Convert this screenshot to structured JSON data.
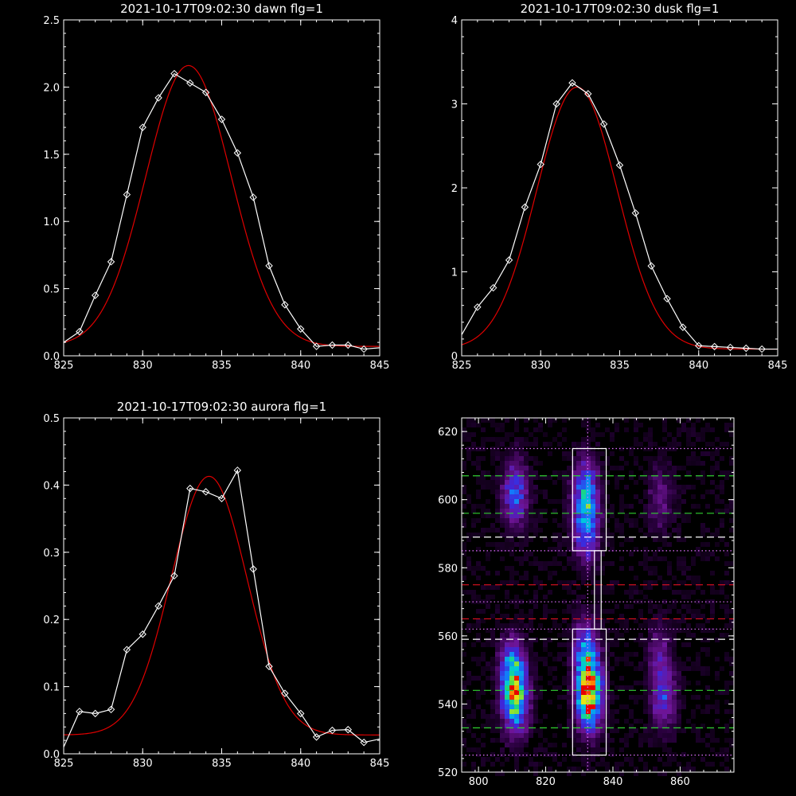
{
  "chart_data": [
    {
      "type": "line",
      "title": "2021-10-17T09:02:30 dawn flg=1",
      "xlim": [
        825,
        845
      ],
      "ylim": [
        0,
        2.5
      ],
      "xticks": [
        "825",
        "830",
        "835",
        "840",
        "845"
      ],
      "yticks": [
        "0.0",
        "0.5",
        "1.0",
        "1.5",
        "2.0",
        "2.5"
      ],
      "series": [
        {
          "x": [
            825,
            826,
            827,
            828,
            829,
            830,
            831,
            832,
            833,
            834,
            835,
            836,
            837,
            838,
            839,
            840,
            841,
            842,
            843,
            844,
            845
          ],
          "values": [
            0.1,
            0.18,
            0.45,
            0.7,
            1.2,
            1.7,
            1.92,
            2.1,
            2.03,
            1.96,
            1.76,
            1.51,
            1.18,
            0.67,
            0.38,
            0.2,
            0.07,
            0.08,
            0.08,
            0.05,
            0.06
          ]
        },
        {
          "fit": {
            "amplitude": 2.09,
            "center": 832.9,
            "sigma": 2.7,
            "baseline": 0.07
          }
        }
      ],
      "colors": {
        "data": "#ffffff",
        "fit": "#e00000"
      }
    },
    {
      "type": "line",
      "title": "2021-10-17T09:02:30 dusk flg=1",
      "xlim": [
        825,
        845
      ],
      "ylim": [
        0,
        4
      ],
      "xticks": [
        "825",
        "830",
        "835",
        "840",
        "845"
      ],
      "yticks": [
        "0",
        "1",
        "2",
        "3",
        "4"
      ],
      "series": [
        {
          "x": [
            825,
            826,
            827,
            828,
            829,
            830,
            831,
            832,
            833,
            834,
            835,
            836,
            837,
            838,
            839,
            840,
            841,
            842,
            843,
            844,
            845
          ],
          "values": [
            0.25,
            0.58,
            0.81,
            1.14,
            1.77,
            2.28,
            3.0,
            3.25,
            3.12,
            2.76,
            2.27,
            1.7,
            1.07,
            0.68,
            0.34,
            0.12,
            0.11,
            0.1,
            0.09,
            0.08,
            0.08
          ]
        },
        {
          "fit": {
            "amplitude": 3.12,
            "center": 832.3,
            "sigma": 2.55,
            "baseline": 0.08
          }
        }
      ],
      "colors": {
        "data": "#ffffff",
        "fit": "#e00000"
      }
    },
    {
      "type": "line",
      "title": "2021-10-17T09:02:30 aurora flg=1",
      "xlim": [
        825,
        845
      ],
      "ylim": [
        0,
        0.5
      ],
      "xticks": [
        "825",
        "830",
        "835",
        "840",
        "845"
      ],
      "yticks": [
        "0.0",
        "0.1",
        "0.2",
        "0.3",
        "0.4",
        "0.5"
      ],
      "series": [
        {
          "x": [
            825,
            826,
            827,
            828,
            829,
            830,
            831,
            832,
            833,
            834,
            835,
            836,
            837,
            838,
            839,
            840,
            841,
            842,
            843,
            844,
            845
          ],
          "values": [
            0.01,
            0.063,
            0.06,
            0.066,
            0.155,
            0.178,
            0.22,
            0.265,
            0.395,
            0.39,
            0.38,
            0.422,
            0.275,
            0.13,
            0.09,
            0.06,
            0.025,
            0.035,
            0.036,
            0.017,
            0.022
          ]
        },
        {
          "fit": {
            "amplitude": 0.385,
            "center": 834.2,
            "sigma": 2.4,
            "baseline": 0.028
          }
        }
      ],
      "colors": {
        "data": "#ffffff",
        "fit": "#e00000"
      }
    },
    {
      "type": "heatmap",
      "title": "",
      "xlim": [
        795,
        876
      ],
      "ylim": [
        520,
        624
      ],
      "xticks": [
        "800",
        "820",
        "840",
        "860"
      ],
      "yticks": [
        "520",
        "540",
        "560",
        "580",
        "600",
        "620"
      ],
      "blobs": [
        {
          "x": 811,
          "y": 602,
          "intensity": 0.45
        },
        {
          "x": 832,
          "y": 602,
          "intensity": 0.55
        },
        {
          "x": 832,
          "y": 590,
          "intensity": 0.4
        },
        {
          "x": 854,
          "y": 600,
          "intensity": 0.2
        },
        {
          "x": 810,
          "y": 550,
          "intensity": 0.5
        },
        {
          "x": 811,
          "y": 541,
          "intensity": 0.7
        },
        {
          "x": 832,
          "y": 555,
          "intensity": 0.55
        },
        {
          "x": 833,
          "y": 542,
          "intensity": 1.0
        },
        {
          "x": 855,
          "y": 542,
          "intensity": 0.35
        },
        {
          "x": 854,
          "y": 555,
          "intensity": 0.2
        }
      ],
      "boxes": [
        {
          "x0": 828,
          "x1": 838,
          "y0": 585,
          "y1": 615
        },
        {
          "x0": 828,
          "x1": 838,
          "y0": 525,
          "y1": 562
        },
        {
          "x0": 834.5,
          "x1": 836.5,
          "y0": 562,
          "y1": 585
        }
      ],
      "hlines": [
        {
          "y": 615,
          "color": "#e070ff",
          "style": "dotted"
        },
        {
          "y": 607,
          "color": "#30d030",
          "style": "dashed"
        },
        {
          "y": 596,
          "color": "#30d030",
          "style": "dashed"
        },
        {
          "y": 589,
          "color": "#ffffff",
          "style": "dashed"
        },
        {
          "y": 585,
          "color": "#e070ff",
          "style": "dotted"
        },
        {
          "y": 575,
          "color": "#e01020",
          "style": "dashed"
        },
        {
          "y": 570,
          "color": "#e070ff",
          "style": "dotted"
        },
        {
          "y": 565,
          "color": "#e01020",
          "style": "dashed"
        },
        {
          "y": 562,
          "color": "#e070ff",
          "style": "dotted"
        },
        {
          "y": 559,
          "color": "#ffffff",
          "style": "dashed"
        },
        {
          "y": 544,
          "color": "#30d030",
          "style": "dashed"
        },
        {
          "y": 533,
          "color": "#30d030",
          "style": "dashed"
        },
        {
          "y": 525,
          "color": "#e070ff",
          "style": "dotted"
        }
      ],
      "vline": {
        "x": 832.5,
        "color": "#e070ff",
        "style": "dotted"
      }
    }
  ]
}
